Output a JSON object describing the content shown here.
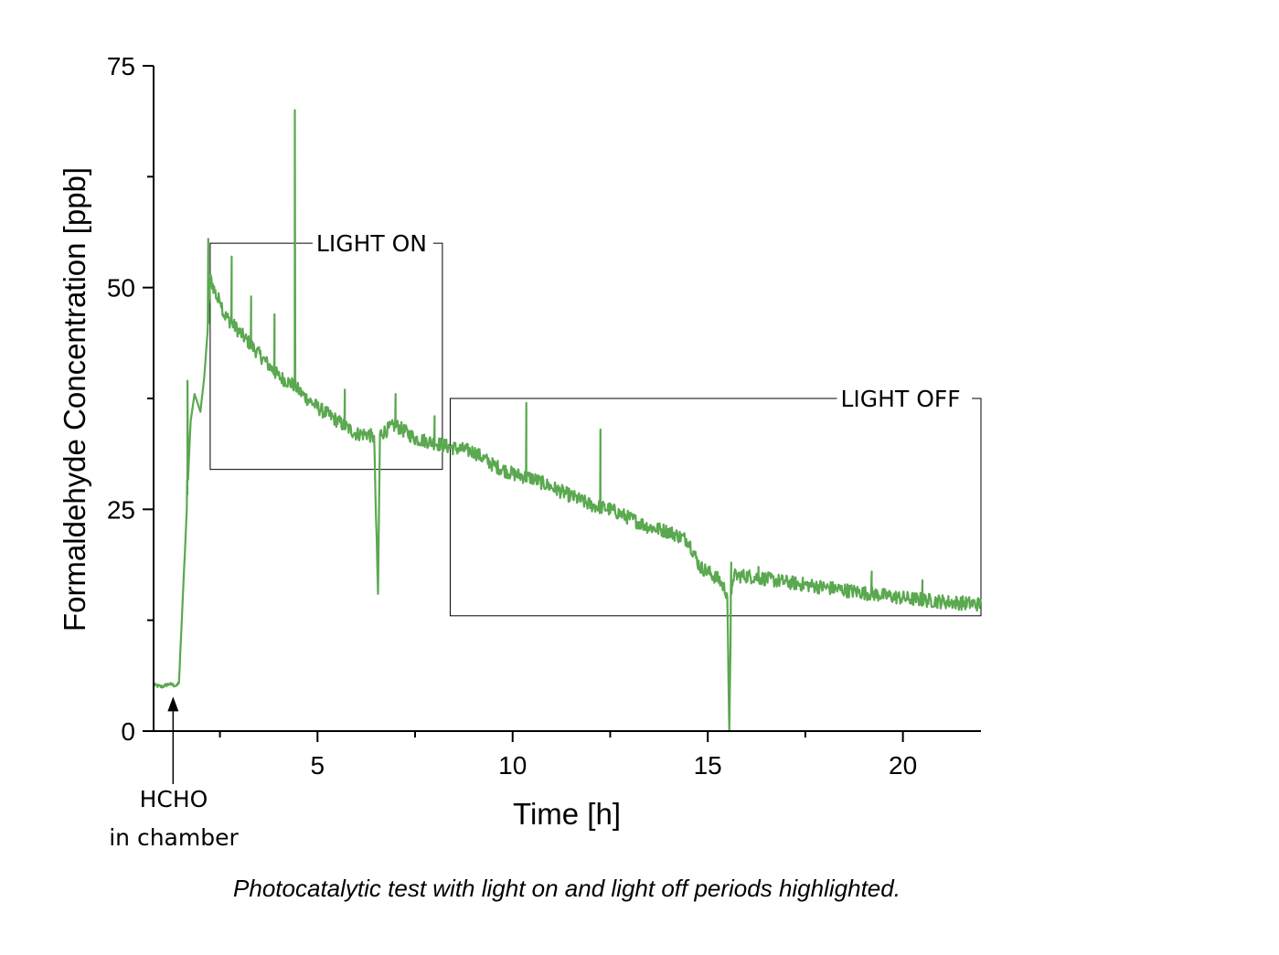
{
  "chart_data": {
    "type": "line",
    "title": "",
    "caption": "Photocatalytic test with light on and light off periods highlighted.",
    "xlabel": "Time [h]",
    "ylabel": "Formaldehyde Concentration [ppb]",
    "xlim": [
      0.8,
      22
    ],
    "ylim": [
      0,
      75
    ],
    "x_ticks": [
      5,
      10,
      15,
      20
    ],
    "y_ticks": [
      0,
      25,
      50,
      75
    ],
    "x_tick_labels": [
      "5",
      "10",
      "15",
      "20"
    ],
    "y_tick_labels": [
      "0",
      "25",
      "50",
      "75"
    ],
    "grid": false,
    "line_color": "#5aa84f",
    "series": [
      {
        "name": "",
        "x": [
          0.8,
          1.0,
          1.2,
          1.4,
          1.45,
          1.6,
          1.75,
          1.85,
          2.0,
          2.1,
          2.2,
          2.25,
          2.3,
          2.45,
          2.5,
          2.6,
          2.8,
          2.9,
          3.0,
          3.2,
          3.4,
          3.6,
          3.8,
          4.0,
          4.2,
          4.4,
          4.6,
          5.0,
          5.5,
          6.0,
          6.3,
          6.45,
          6.5,
          6.55,
          6.6,
          6.8,
          7.0,
          7.5,
          8.0,
          8.4,
          9.0,
          9.5,
          10.0,
          10.5,
          11.0,
          11.5,
          12.0,
          12.5,
          13.0,
          13.5,
          14.0,
          14.5,
          14.8,
          15.0,
          15.3,
          15.5,
          15.55,
          15.6,
          15.65,
          16.0,
          17.0,
          18.0,
          19.0,
          20.0,
          21.0,
          22.0
        ],
        "y": [
          5.2,
          5.0,
          5.3,
          5.1,
          5.5,
          20,
          35,
          38,
          36,
          40,
          46,
          51,
          50.5,
          48.5,
          49,
          47,
          46,
          45.5,
          45,
          44,
          43,
          42,
          41,
          40,
          39.5,
          39,
          38,
          36.5,
          35,
          33.5,
          33.5,
          33,
          24,
          15.5,
          33.5,
          34,
          34.5,
          33,
          32.5,
          32,
          31.5,
          30,
          29,
          28.5,
          27.5,
          26.5,
          25.5,
          25,
          24,
          23,
          22.5,
          21.5,
          18.5,
          18,
          17,
          15.5,
          0,
          15,
          17.5,
          17.5,
          16.8,
          16.2,
          15.6,
          15,
          14.6,
          14.3
        ]
      }
    ],
    "spikes": [
      {
        "x": 1.67,
        "y": 39.5
      },
      {
        "x": 2.2,
        "y": 55.5
      },
      {
        "x": 2.8,
        "y": 53.5
      },
      {
        "x": 3.3,
        "y": 49
      },
      {
        "x": 3.9,
        "y": 47
      },
      {
        "x": 4.42,
        "y": 70
      },
      {
        "x": 5.7,
        "y": 38.5
      },
      {
        "x": 7.0,
        "y": 38
      },
      {
        "x": 8.0,
        "y": 35.5
      },
      {
        "x": 10.35,
        "y": 37
      },
      {
        "x": 12.25,
        "y": 34
      },
      {
        "x": 15.6,
        "y": 19
      },
      {
        "x": 16.3,
        "y": 18.5
      },
      {
        "x": 19.2,
        "y": 18
      },
      {
        "x": 20.5,
        "y": 17
      }
    ],
    "annotations": [
      {
        "text": "LIGHT ON",
        "x_range": [
          2.25,
          8.2
        ],
        "y_range": [
          29.5,
          55
        ]
      },
      {
        "text": "LIGHT OFF",
        "x_range": [
          8.4,
          22.0
        ],
        "y_range": [
          13,
          37.5
        ]
      },
      {
        "text": "HCHO\nin chamber",
        "arrow_x": 1.3,
        "arrow_tip_y": 4.5
      }
    ]
  }
}
